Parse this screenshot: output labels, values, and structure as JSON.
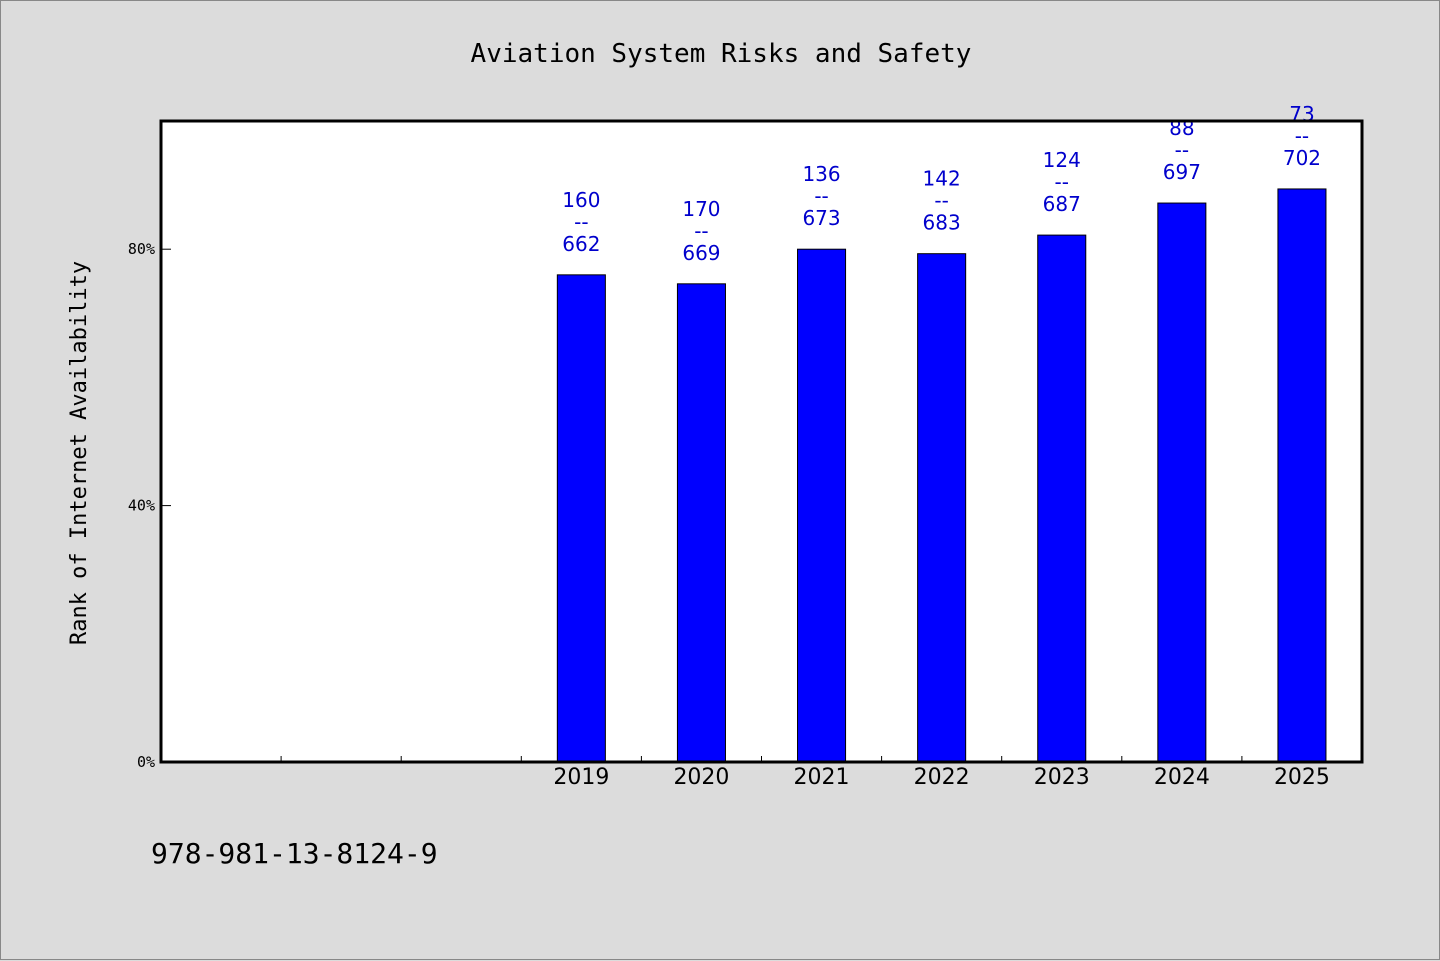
{
  "chart_data": {
    "type": "bar",
    "title": "Aviation System Risks and Safety",
    "ylabel": "Rank of Internet Availability",
    "xlabel": "",
    "ylim": [
      0,
      100
    ],
    "yticks": [
      0,
      40,
      80
    ],
    "ytick_labels": [
      "0%",
      "40%",
      "80%"
    ],
    "slots": [
      "",
      "",
      "",
      "2019",
      "2020",
      "2021",
      "2022",
      "2023",
      "2024",
      "2025"
    ],
    "categories": [
      "2019",
      "2020",
      "2021",
      "2022",
      "2023",
      "2024",
      "2025"
    ],
    "values": [
      76,
      74.6,
      80,
      79.3,
      82.2,
      87.2,
      89.4
    ],
    "labels_top": [
      "160",
      "170",
      "136",
      "142",
      "124",
      "88",
      "73"
    ],
    "labels_sep": "--",
    "labels_bottom": [
      "662",
      "669",
      "673",
      "683",
      "687",
      "697",
      "702"
    ],
    "bar_color": "#0000ff",
    "label_color": "#0000cc",
    "grid": false,
    "legend": "none"
  },
  "footnote": "978-981-13-8124-9"
}
